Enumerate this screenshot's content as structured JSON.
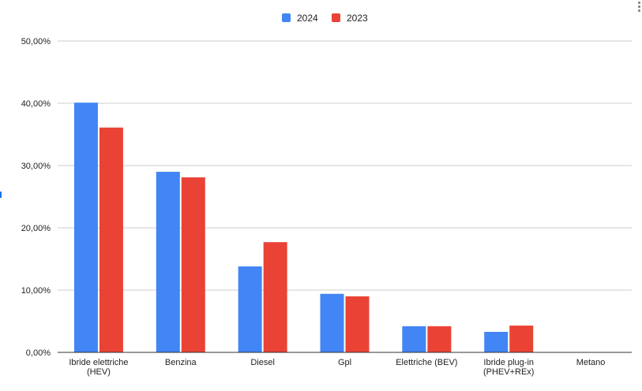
{
  "chart_data": {
    "type": "bar",
    "categories": [
      "Ibride elettriche\n(HEV)",
      "Benzina",
      "Diesel",
      "Gpl",
      "Elettriche (BEV)",
      "Ibride plug-in\n(PHEV+REx)",
      "Metano"
    ],
    "series": [
      {
        "name": "2024",
        "color": "#4285f4",
        "values": [
          40.1,
          29.0,
          13.8,
          9.4,
          4.2,
          3.3,
          0.0
        ]
      },
      {
        "name": "2023",
        "color": "#ea4335",
        "values": [
          36.1,
          28.1,
          17.7,
          9.0,
          4.2,
          4.3,
          0.0
        ]
      }
    ],
    "yticks": [
      "0,00%",
      "10,00%",
      "20,00%",
      "30,00%",
      "40,00%",
      "50,00%"
    ],
    "ylim": [
      0,
      50
    ],
    "title": "",
    "xlabel": "",
    "ylabel": "",
    "grid": true,
    "legend_position": "top"
  },
  "icons": {
    "menu": "more-vertical-icon"
  }
}
